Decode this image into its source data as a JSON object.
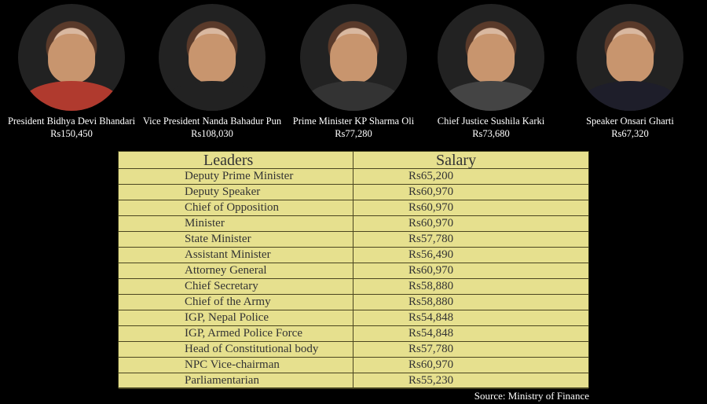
{
  "leaders": [
    {
      "name": "President Bidhya Devi Bhandari",
      "salary": "Rs150,450"
    },
    {
      "name": "Vice President Nanda Bahadur Pun",
      "salary": "Rs108,030"
    },
    {
      "name": "Prime Minister KP Sharma Oli",
      "salary": "Rs77,280"
    },
    {
      "name": "Chief Justice Sushila Karki",
      "salary": "Rs73,680"
    },
    {
      "name": "Speaker Onsari Gharti",
      "salary": "Rs67,320"
    }
  ],
  "table": {
    "headers": [
      "Leaders",
      "Salary"
    ],
    "rows": [
      [
        "Deputy Prime Minister",
        "Rs65,200"
      ],
      [
        "Deputy Speaker",
        "Rs60,970"
      ],
      [
        "Chief of Opposition",
        "Rs60,970"
      ],
      [
        "Minister",
        "Rs60,970"
      ],
      [
        "State Minister",
        "Rs57,780"
      ],
      [
        "Assistant Minister",
        "Rs56,490"
      ],
      [
        "Attorney General",
        "Rs60,970"
      ],
      [
        "Chief Secretary",
        "Rs58,880"
      ],
      [
        "Chief of the Army",
        "Rs58,880"
      ],
      [
        "IGP, Nepal Police",
        "Rs54,848"
      ],
      [
        "IGP, Armed Police Force",
        "Rs54,848"
      ],
      [
        "Head of Constitutional body",
        "Rs57,780"
      ],
      [
        "NPC Vice-chairman",
        "Rs60,970"
      ],
      [
        "Parliamentarian",
        "Rs55,230"
      ]
    ]
  },
  "source": "Source: Ministry of Finance",
  "colors": {
    "table_bg": "#e6e08e",
    "background": "#000000"
  }
}
